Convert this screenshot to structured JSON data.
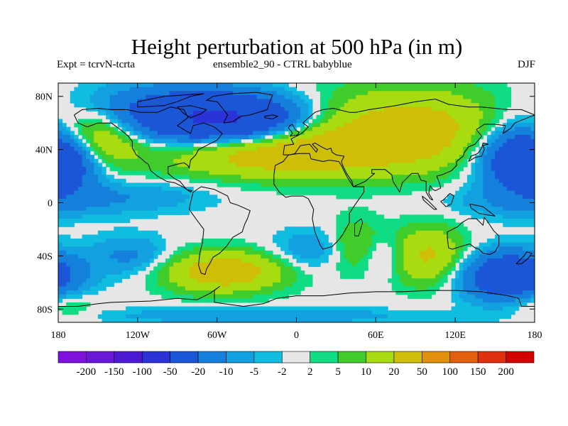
{
  "title": "Height perturbation at 500 hPa (in m)",
  "subtitle_left": "Expt = tcrvN-tcrta",
  "subtitle_center": "ensemble2_90 - CTRL babyblue",
  "subtitle_right": "DJF",
  "lat_ticks": [
    {
      "value": 80,
      "label": "80N"
    },
    {
      "value": 40,
      "label": "40N"
    },
    {
      "value": 0,
      "label": "0"
    },
    {
      "value": -40,
      "label": "40S"
    },
    {
      "value": -80,
      "label": "80S"
    }
  ],
  "lon_ticks": [
    {
      "value": -180,
      "label": "180"
    },
    {
      "value": -120,
      "label": "120W"
    },
    {
      "value": -60,
      "label": "60W"
    },
    {
      "value": 0,
      "label": "0"
    },
    {
      "value": 60,
      "label": "60E"
    },
    {
      "value": 120,
      "label": "120E"
    },
    {
      "value": 180,
      "label": "180"
    }
  ],
  "colorbar": {
    "levels": [
      -200,
      -150,
      -100,
      -50,
      -20,
      -10,
      -5,
      -2,
      2,
      5,
      10,
      20,
      50,
      100,
      150,
      200
    ],
    "labels": [
      "-200",
      "-150",
      "-100",
      "-50",
      "-20",
      "-10",
      "-5",
      "-2",
      "2",
      "5",
      "10",
      "20",
      "50",
      "100",
      "150",
      "200"
    ],
    "colors": [
      "#7d10dc",
      "#6a18d8",
      "#4c1ad4",
      "#2a32d8",
      "#1a56d6",
      "#1480dc",
      "#12a0e0",
      "#10bce0",
      "#e6e6e6",
      "#10dc84",
      "#40cc2a",
      "#a8dc10",
      "#cebe06",
      "#e0900a",
      "#e06010",
      "#e03010",
      "#d40000"
    ]
  },
  "map_data": {
    "projection": "cylindrical-equidistant",
    "lon_range": [
      -180,
      180
    ],
    "lat_range": [
      -90,
      90
    ],
    "field": "500 hPa height perturbation (m), DJF",
    "blobs": [
      {
        "lon": -100,
        "lat": 65,
        "rlon": 80,
        "rlat": 22,
        "value": -30
      },
      {
        "lon": -45,
        "lat": 62,
        "rlon": 55,
        "rlat": 18,
        "value": -40
      },
      {
        "lon": -155,
        "lat": 50,
        "rlon": 35,
        "rlat": 22,
        "value": 35
      },
      {
        "lon": -175,
        "lat": 35,
        "rlon": 28,
        "rlat": 22,
        "value": -25
      },
      {
        "lon": -20,
        "lat": 38,
        "rlon": 85,
        "rlat": 18,
        "value": 30
      },
      {
        "lon": 85,
        "lat": 55,
        "rlon": 90,
        "rlat": 30,
        "value": 28
      },
      {
        "lon": 170,
        "lat": 35,
        "rlon": 35,
        "rlat": 25,
        "value": -40
      },
      {
        "lon": -120,
        "lat": 5,
        "rlon": 60,
        "rlat": 12,
        "value": -8
      },
      {
        "lon": 170,
        "lat": 0,
        "rlon": 60,
        "rlat": 12,
        "value": -8
      },
      {
        "lon": -55,
        "lat": -52,
        "rlon": 45,
        "rlat": 15,
        "value": 30
      },
      {
        "lon": -125,
        "lat": -40,
        "rlon": 30,
        "rlat": 15,
        "value": -12
      },
      {
        "lon": 10,
        "lat": -35,
        "rlon": 28,
        "rlat": 15,
        "value": -10
      },
      {
        "lon": 45,
        "lat": -32,
        "rlon": 20,
        "rlat": 20,
        "value": 12
      },
      {
        "lon": 65,
        "lat": -40,
        "rlon": 15,
        "rlat": 15,
        "value": -10
      },
      {
        "lon": 100,
        "lat": -40,
        "rlon": 28,
        "rlat": 22,
        "value": 22
      },
      {
        "lon": 160,
        "lat": -55,
        "rlon": 35,
        "rlat": 18,
        "value": -40
      },
      {
        "lon": -30,
        "lat": -85,
        "rlon": 120,
        "rlat": 6,
        "value": -10
      },
      {
        "lon": -175,
        "lat": -78,
        "rlon": 25,
        "rlat": 12,
        "value": 8
      }
    ]
  }
}
